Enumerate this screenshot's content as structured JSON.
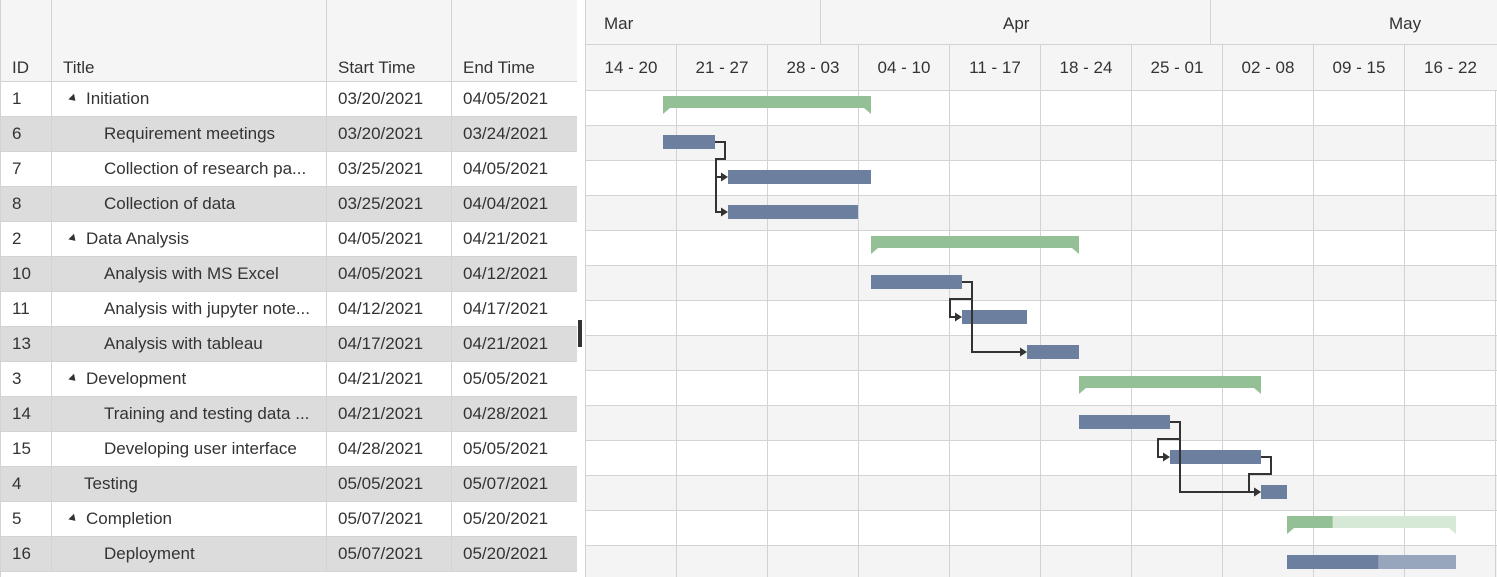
{
  "grid": {
    "columns": {
      "id": "ID",
      "title": "Title",
      "start": "Start Time",
      "end": "End Time"
    }
  },
  "rows": [
    {
      "id": "1",
      "title": "Initiation",
      "start": "03/20/2021",
      "end": "04/05/2021",
      "level": 0,
      "parent": true
    },
    {
      "id": "6",
      "title": "Requirement meetings",
      "start": "03/20/2021",
      "end": "03/24/2021",
      "level": 1,
      "parent": false
    },
    {
      "id": "7",
      "title": "Collection of research pa...",
      "start": "03/25/2021",
      "end": "04/05/2021",
      "level": 1,
      "parent": false
    },
    {
      "id": "8",
      "title": "Collection of data",
      "start": "03/25/2021",
      "end": "04/04/2021",
      "level": 1,
      "parent": false
    },
    {
      "id": "2",
      "title": "Data Analysis",
      "start": "04/05/2021",
      "end": "04/21/2021",
      "level": 0,
      "parent": true
    },
    {
      "id": "10",
      "title": "Analysis with MS Excel",
      "start": "04/05/2021",
      "end": "04/12/2021",
      "level": 1,
      "parent": false
    },
    {
      "id": "11",
      "title": "Analysis with jupyter note...",
      "start": "04/12/2021",
      "end": "04/17/2021",
      "level": 1,
      "parent": false
    },
    {
      "id": "13",
      "title": "Analysis with tableau",
      "start": "04/17/2021",
      "end": "04/21/2021",
      "level": 1,
      "parent": false
    },
    {
      "id": "3",
      "title": "Development",
      "start": "04/21/2021",
      "end": "05/05/2021",
      "level": 0,
      "parent": true
    },
    {
      "id": "14",
      "title": "Training and testing data ...",
      "start": "04/21/2021",
      "end": "04/28/2021",
      "level": 1,
      "parent": false
    },
    {
      "id": "15",
      "title": "Developing user interface",
      "start": "04/28/2021",
      "end": "05/05/2021",
      "level": 1,
      "parent": false
    },
    {
      "id": "4",
      "title": "Testing",
      "start": "05/05/2021",
      "end": "05/07/2021",
      "level": 0,
      "parent": false
    },
    {
      "id": "5",
      "title": "Completion",
      "start": "05/07/2021",
      "end": "05/20/2021",
      "level": 0,
      "parent": true
    },
    {
      "id": "16",
      "title": "Deployment",
      "start": "05/07/2021",
      "end": "05/20/2021",
      "level": 1,
      "parent": false
    }
  ],
  "timeline": {
    "months": [
      "Mar",
      "Apr",
      "May"
    ],
    "weeks": [
      "14 - 20",
      "21 - 27",
      "28 - 03",
      "04 - 10",
      "11 - 17",
      "18 - 24",
      "25 - 01",
      "02 - 08",
      "09 - 15",
      "16 - 22"
    ],
    "first_date": "03/14/2021",
    "last_date": "05/23/2021",
    "progress": {
      "5": 0.27,
      "16": 0.54
    },
    "dependencies": [
      [
        "6",
        "7"
      ],
      [
        "6",
        "8"
      ],
      [
        "10",
        "11"
      ],
      [
        "10",
        "13"
      ],
      [
        "14",
        "15"
      ],
      [
        "14",
        "4"
      ],
      [
        "15",
        "4"
      ]
    ]
  },
  "colors": {
    "summary_bar": "#94c095",
    "summary_bar_light": "#d6e8d6",
    "task_bar": "#6d7f9e",
    "task_bar_light": "#98a6bd",
    "connector": "#333333",
    "alt_row_grid": "#dcdcdc",
    "alt_row_chart": "#f4f4f4"
  }
}
